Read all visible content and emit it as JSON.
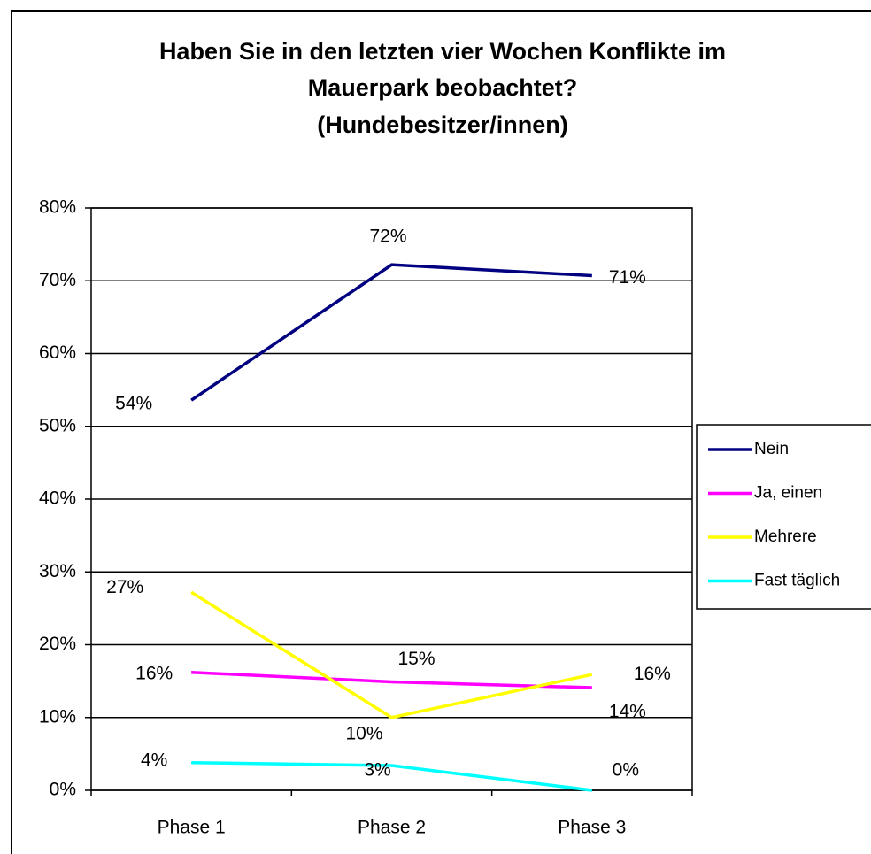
{
  "chart_data": {
    "type": "line",
    "title": [
      "Haben Sie in den letzten vier Wochen Konflikte im",
      "Mauerpark beobachtet?",
      "(Hundebesitzer/innen)"
    ],
    "categories": [
      "Phase 1",
      "Phase 2",
      "Phase 3"
    ],
    "series": [
      {
        "name": "Nein",
        "color": "#000080",
        "values": [
          53.6,
          72.2,
          70.7
        ],
        "value_labels": [
          "54%",
          "72%",
          "71%"
        ]
      },
      {
        "name": "Ja, einen",
        "color": "#ff00ff",
        "values": [
          16.2,
          14.9,
          14.1
        ],
        "value_labels": [
          "16%",
          "15%",
          "14%"
        ]
      },
      {
        "name": "Mehrere",
        "color": "#ffff00",
        "values": [
          27.2,
          10.0,
          15.9
        ],
        "value_labels": [
          "27%",
          "10%",
          "16%"
        ]
      },
      {
        "name": "Fast täglich",
        "color": "#00ffff",
        "values": [
          3.8,
          3.4,
          0
        ],
        "value_labels": [
          "4%",
          "3%",
          "0%"
        ]
      }
    ],
    "ylim": [
      0,
      80
    ],
    "yticks": [
      {
        "value": 0,
        "label": "0%"
      },
      {
        "value": 10,
        "label": "10%"
      },
      {
        "value": 20,
        "label": "20%"
      },
      {
        "value": 30,
        "label": "30%"
      },
      {
        "value": 40,
        "label": "40%"
      },
      {
        "value": 50,
        "label": "50%"
      },
      {
        "value": 60,
        "label": "60%"
      },
      {
        "value": 70,
        "label": "70%"
      },
      {
        "value": 80,
        "label": "80%"
      }
    ],
    "grid": true,
    "legend": "right"
  }
}
